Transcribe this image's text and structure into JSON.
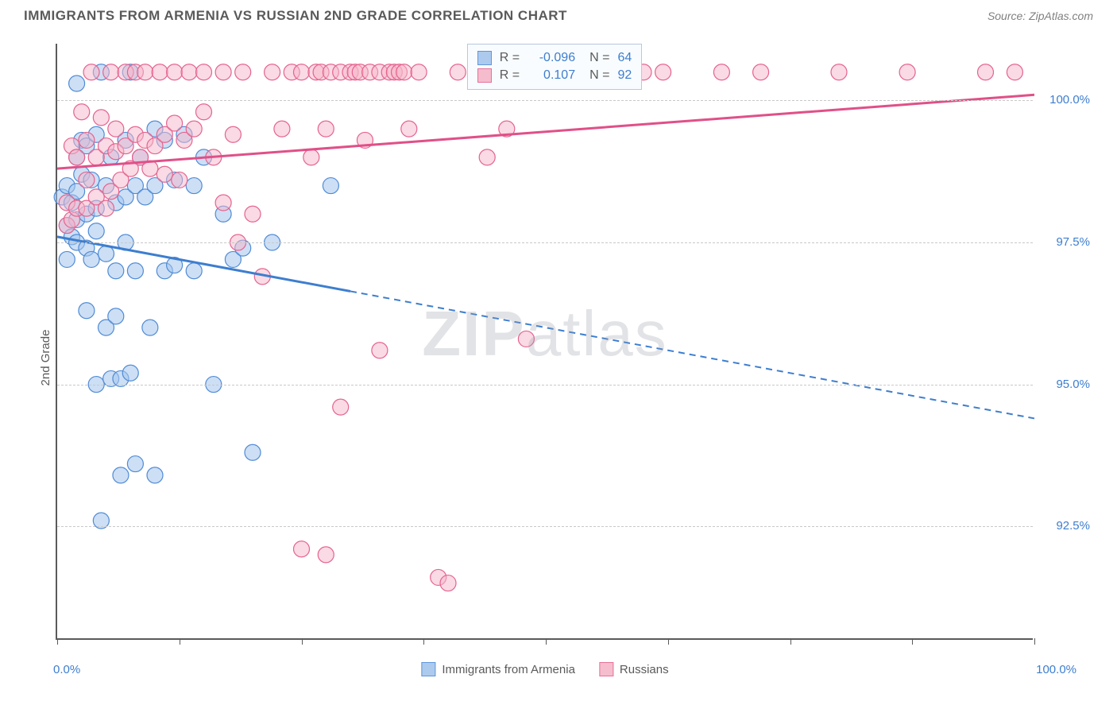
{
  "header": {
    "title": "IMMIGRANTS FROM ARMENIA VS RUSSIAN 2ND GRADE CORRELATION CHART",
    "source": "Source: ZipAtlas.com"
  },
  "chart": {
    "type": "scatter",
    "ylabel": "2nd Grade",
    "xlim": [
      0,
      100
    ],
    "ylim": [
      90.5,
      101
    ],
    "xtick_positions": [
      0,
      12.5,
      25,
      37.5,
      50,
      62.5,
      75,
      87.5,
      100
    ],
    "xtick_labels": {
      "0": "0.0%",
      "100": "100.0%"
    },
    "ytick_values": [
      92.5,
      95.0,
      97.5,
      100.0
    ],
    "ytick_labels": [
      "92.5%",
      "95.0%",
      "97.5%",
      "100.0%"
    ],
    "background_color": "#ffffff",
    "grid_color": "#c8c8c8",
    "axis_color": "#5a5a5a",
    "watermark": "ZIPatlas",
    "series": [
      {
        "name": "Immigrants from Armenia",
        "fill": "#a4c5ec",
        "stroke": "#4f8bd6",
        "fill_opacity": 0.55,
        "line_color": "#3d7ecf",
        "marker_radius": 10,
        "R": "-0.096",
        "N": "64",
        "trend": {
          "x1": 0,
          "y1": 97.6,
          "x2": 100,
          "y2": 94.4,
          "solid_until_x": 30
        },
        "points": [
          [
            0.5,
            98.3
          ],
          [
            1,
            98.5
          ],
          [
            1,
            97.8
          ],
          [
            1,
            97.2
          ],
          [
            1.5,
            98.2
          ],
          [
            1.5,
            97.6
          ],
          [
            2,
            100.3
          ],
          [
            2,
            99.0
          ],
          [
            2,
            98.4
          ],
          [
            2,
            97.9
          ],
          [
            2,
            97.5
          ],
          [
            2.5,
            99.3
          ],
          [
            2.5,
            98.7
          ],
          [
            3,
            99.2
          ],
          [
            3,
            98.0
          ],
          [
            3,
            97.4
          ],
          [
            3,
            96.3
          ],
          [
            3.5,
            98.6
          ],
          [
            3.5,
            97.2
          ],
          [
            4,
            99.4
          ],
          [
            4,
            98.1
          ],
          [
            4,
            97.7
          ],
          [
            4,
            95.0
          ],
          [
            4.5,
            100.5
          ],
          [
            4.5,
            92.6
          ],
          [
            5,
            98.5
          ],
          [
            5,
            97.3
          ],
          [
            5,
            96.0
          ],
          [
            5.5,
            99.0
          ],
          [
            5.5,
            95.1
          ],
          [
            6,
            98.2
          ],
          [
            6,
            97.0
          ],
          [
            6,
            96.2
          ],
          [
            6.5,
            95.1
          ],
          [
            6.5,
            93.4
          ],
          [
            7,
            99.3
          ],
          [
            7,
            98.3
          ],
          [
            7,
            97.5
          ],
          [
            7.5,
            95.2
          ],
          [
            7.5,
            100.5
          ],
          [
            8,
            98.5
          ],
          [
            8,
            97.0
          ],
          [
            8,
            93.6
          ],
          [
            8.5,
            99.0
          ],
          [
            9,
            98.3
          ],
          [
            9.5,
            96.0
          ],
          [
            10,
            93.4
          ],
          [
            10,
            98.5
          ],
          [
            10,
            99.5
          ],
          [
            11,
            99.3
          ],
          [
            11,
            97.0
          ],
          [
            12,
            98.6
          ],
          [
            12,
            97.1
          ],
          [
            13,
            99.4
          ],
          [
            14,
            98.5
          ],
          [
            14,
            97.0
          ],
          [
            15,
            99.0
          ],
          [
            16,
            95.0
          ],
          [
            17,
            98.0
          ],
          [
            18,
            97.2
          ],
          [
            19,
            97.4
          ],
          [
            20,
            93.8
          ],
          [
            22,
            97.5
          ],
          [
            28,
            98.5
          ]
        ]
      },
      {
        "name": "Russians",
        "fill": "#f5b6c9",
        "stroke": "#e5638f",
        "fill_opacity": 0.5,
        "line_color": "#e05088",
        "marker_radius": 10,
        "R": "0.107",
        "N": "92",
        "trend": {
          "x1": 0,
          "y1": 98.8,
          "x2": 100,
          "y2": 100.1,
          "solid_until_x": 100
        },
        "points": [
          [
            1,
            97.8
          ],
          [
            1,
            98.2
          ],
          [
            1.5,
            99.2
          ],
          [
            1.5,
            97.9
          ],
          [
            2,
            99.0
          ],
          [
            2,
            98.1
          ],
          [
            2.5,
            99.8
          ],
          [
            3,
            98.1
          ],
          [
            3,
            99.3
          ],
          [
            3,
            98.6
          ],
          [
            3.5,
            100.5
          ],
          [
            4,
            98.3
          ],
          [
            4,
            99.0
          ],
          [
            4.5,
            99.7
          ],
          [
            5,
            98.1
          ],
          [
            5,
            99.2
          ],
          [
            5.5,
            100.5
          ],
          [
            5.5,
            98.4
          ],
          [
            6,
            99.1
          ],
          [
            6,
            99.5
          ],
          [
            6.5,
            98.6
          ],
          [
            7,
            99.2
          ],
          [
            7,
            100.5
          ],
          [
            7.5,
            98.8
          ],
          [
            8,
            99.4
          ],
          [
            8,
            100.5
          ],
          [
            8.5,
            99.0
          ],
          [
            9,
            100.5
          ],
          [
            9,
            99.3
          ],
          [
            9.5,
            98.8
          ],
          [
            10,
            99.2
          ],
          [
            10.5,
            100.5
          ],
          [
            11,
            98.7
          ],
          [
            11,
            99.4
          ],
          [
            12,
            100.5
          ],
          [
            12,
            99.6
          ],
          [
            12.5,
            98.6
          ],
          [
            13,
            99.3
          ],
          [
            13.5,
            100.5
          ],
          [
            14,
            99.5
          ],
          [
            15,
            99.8
          ],
          [
            15,
            100.5
          ],
          [
            16,
            99.0
          ],
          [
            17,
            100.5
          ],
          [
            17,
            98.2
          ],
          [
            18,
            99.4
          ],
          [
            18.5,
            97.5
          ],
          [
            19,
            100.5
          ],
          [
            20,
            98.0
          ],
          [
            21,
            96.9
          ],
          [
            22,
            100.5
          ],
          [
            23,
            99.5
          ],
          [
            24,
            100.5
          ],
          [
            25,
            100.5
          ],
          [
            25,
            92.1
          ],
          [
            26,
            99.0
          ],
          [
            26.5,
            100.5
          ],
          [
            27,
            100.5
          ],
          [
            27.5,
            99.5
          ],
          [
            27.5,
            92.0
          ],
          [
            28,
            100.5
          ],
          [
            29,
            100.5
          ],
          [
            29,
            94.6
          ],
          [
            30,
            100.5
          ],
          [
            30.5,
            100.5
          ],
          [
            31,
            100.5
          ],
          [
            31.5,
            99.3
          ],
          [
            32,
            100.5
          ],
          [
            33,
            100.5
          ],
          [
            33,
            95.6
          ],
          [
            34,
            100.5
          ],
          [
            34.5,
            100.5
          ],
          [
            35,
            100.5
          ],
          [
            35.5,
            100.5
          ],
          [
            36,
            99.5
          ],
          [
            37,
            100.5
          ],
          [
            39,
            91.6
          ],
          [
            40,
            91.5
          ],
          [
            41,
            100.5
          ],
          [
            44,
            99.0
          ],
          [
            46,
            99.5
          ],
          [
            48,
            95.8
          ],
          [
            50,
            100.5
          ],
          [
            55,
            100.5
          ],
          [
            60,
            100.5
          ],
          [
            62,
            100.5
          ],
          [
            68,
            100.5
          ],
          [
            72,
            100.5
          ],
          [
            80,
            100.5
          ],
          [
            87,
            100.5
          ],
          [
            95,
            100.5
          ],
          [
            98,
            100.5
          ]
        ]
      }
    ],
    "stat_box": {
      "left_pct": 42,
      "top_pct": 0
    },
    "legend": {
      "items": [
        {
          "label": "Immigrants from Armenia",
          "series_index": 0
        },
        {
          "label": "Russians",
          "series_index": 1
        }
      ]
    },
    "label_colors": {
      "blue": "#3d7ecf",
      "pink": "#e05088"
    }
  }
}
